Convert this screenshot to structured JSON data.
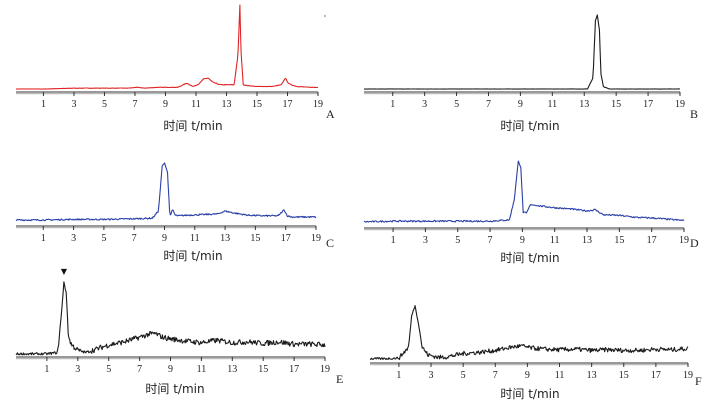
{
  "chart_data": [
    {
      "type": "line",
      "panel_label": "A",
      "xlabel": "时间 t/min",
      "xticks": [
        1,
        3,
        5,
        7,
        9,
        11,
        13,
        15,
        17,
        19
      ],
      "xlim": [
        -0.8,
        19
      ],
      "color": "#e02424",
      "series": [
        {
          "x": [
            -0.8,
            1,
            3,
            5,
            6.5,
            7.2,
            7.6,
            8.5,
            9.8,
            10.4,
            10.8,
            11.2,
            11.5,
            11.8,
            12.1,
            12.6,
            13.0,
            13.5,
            13.75,
            13.88,
            13.95,
            14.1,
            14.4,
            15,
            16.0,
            16.6,
            16.85,
            17.1,
            17.6,
            18.5,
            19
          ],
          "y": [
            0.0,
            0.0,
            0.01,
            0.01,
            0.01,
            0.02,
            0.01,
            0.02,
            0.02,
            0.07,
            0.03,
            0.06,
            0.12,
            0.13,
            0.08,
            0.05,
            0.05,
            0.05,
            0.4,
            1.0,
            0.45,
            0.05,
            0.04,
            0.03,
            0.03,
            0.05,
            0.13,
            0.06,
            0.03,
            0.02,
            0.02
          ]
        }
      ]
    },
    {
      "type": "line",
      "panel_label": "B",
      "xlabel": "时间 t/min",
      "xticks": [
        1,
        3,
        5,
        7,
        9,
        11,
        13,
        15,
        17,
        19
      ],
      "xlim": [
        -0.8,
        19
      ],
      "color": "#1a1a1a",
      "series": [
        {
          "x": [
            -0.8,
            5,
            10,
            13.2,
            13.55,
            13.7,
            13.82,
            13.95,
            14.05,
            14.2,
            14.6,
            16,
            19
          ],
          "y": [
            0.0,
            0.0,
            0.0,
            0.0,
            0.15,
            0.92,
            1.0,
            0.8,
            0.2,
            0.03,
            0.0,
            0.0,
            0.0
          ]
        }
      ]
    },
    {
      "type": "line",
      "panel_label": "C",
      "xlabel": "时间 t/min",
      "xticks": [
        1,
        3,
        5,
        7,
        9,
        11,
        13,
        15,
        17,
        19
      ],
      "xlim": [
        -0.8,
        19
      ],
      "color": "#2a3fa8",
      "series": [
        {
          "x": [
            -0.8,
            1,
            3,
            5,
            7,
            8.2,
            8.6,
            8.85,
            9.0,
            9.2,
            9.35,
            9.55,
            9.7,
            9.9,
            10.5,
            11.5,
            12.5,
            13.0,
            13.5,
            14.5,
            15.5,
            16.5,
            16.9,
            17.1,
            17.4,
            18.2,
            19
          ],
          "y": [
            0.05,
            0.05,
            0.06,
            0.06,
            0.07,
            0.08,
            0.2,
            0.95,
            1.0,
            0.85,
            0.12,
            0.22,
            0.13,
            0.12,
            0.13,
            0.14,
            0.15,
            0.2,
            0.17,
            0.13,
            0.12,
            0.12,
            0.22,
            0.12,
            0.1,
            0.1,
            0.1
          ]
        }
      ]
    },
    {
      "type": "line",
      "panel_label": "D",
      "xlabel": "时间 t/min",
      "xticks": [
        1,
        3,
        5,
        7,
        9,
        11,
        13,
        15,
        17,
        19
      ],
      "xlim": [
        -0.8,
        19
      ],
      "color": "#2a3fa8",
      "series": [
        {
          "x": [
            -0.8,
            1,
            3,
            5,
            7,
            8.2,
            8.5,
            8.75,
            8.9,
            9.05,
            9.25,
            9.5,
            10,
            11,
            12,
            13,
            13.5,
            14,
            15,
            16,
            17,
            18,
            19
          ],
          "y": [
            0.05,
            0.06,
            0.06,
            0.06,
            0.06,
            0.08,
            0.4,
            1.0,
            0.9,
            0.2,
            0.18,
            0.32,
            0.3,
            0.27,
            0.25,
            0.22,
            0.24,
            0.16,
            0.15,
            0.12,
            0.11,
            0.09,
            0.07
          ]
        }
      ]
    },
    {
      "type": "line",
      "panel_label": "E",
      "xlabel": "时间 t/min",
      "xticks": [
        1,
        3,
        5,
        7,
        9,
        11,
        13,
        15,
        17,
        19
      ],
      "xlim": [
        -1,
        19
      ],
      "color": "#1a1a1a",
      "annotation": "▼",
      "series": [
        {
          "x": [
            -1,
            0,
            1,
            1.7,
            1.95,
            2.1,
            2.25,
            2.4,
            2.6,
            3,
            3.5,
            4,
            5,
            6,
            7,
            7.6,
            8,
            8.5,
            9,
            10,
            11,
            12,
            13,
            14,
            15,
            16,
            17,
            18,
            19
          ],
          "y": [
            0.0,
            0.0,
            0.0,
            0.02,
            0.55,
            0.95,
            0.8,
            0.22,
            0.12,
            0.05,
            0.02,
            0.05,
            0.12,
            0.16,
            0.22,
            0.26,
            0.27,
            0.22,
            0.2,
            0.17,
            0.15,
            0.18,
            0.15,
            0.16,
            0.14,
            0.16,
            0.13,
            0.13,
            0.12
          ]
        }
      ]
    },
    {
      "type": "line",
      "panel_label": "F",
      "xlabel": "时间 t/min",
      "xticks": [
        1,
        3,
        5,
        7,
        9,
        11,
        13,
        15,
        17,
        19
      ],
      "xlim": [
        -0.8,
        19
      ],
      "color": "#1a1a1a",
      "series": [
        {
          "x": [
            -0.8,
            0,
            1,
            1.6,
            1.8,
            2.0,
            2.2,
            2.45,
            2.8,
            3.5,
            4,
            5,
            6,
            7,
            8,
            8.6,
            9.2,
            10,
            11,
            12,
            13,
            14,
            15,
            16,
            17,
            18,
            19
          ],
          "y": [
            0.02,
            0.02,
            0.03,
            0.2,
            0.7,
            0.85,
            0.6,
            0.2,
            0.08,
            0.04,
            0.05,
            0.1,
            0.12,
            0.15,
            0.2,
            0.22,
            0.19,
            0.17,
            0.16,
            0.17,
            0.15,
            0.16,
            0.15,
            0.15,
            0.17,
            0.16,
            0.18
          ]
        }
      ]
    }
  ]
}
